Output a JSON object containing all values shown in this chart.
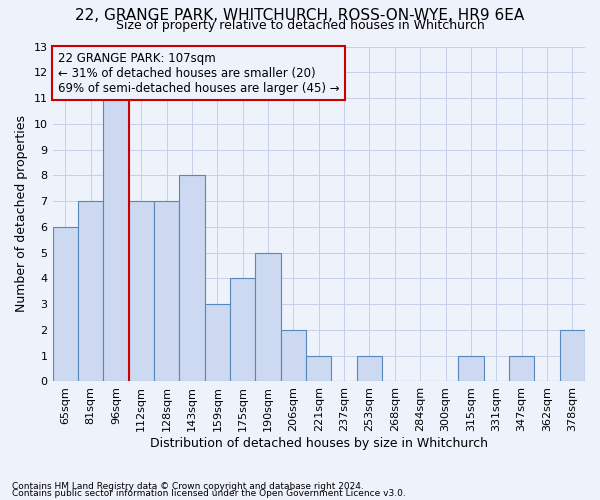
{
  "title1": "22, GRANGE PARK, WHITCHURCH, ROSS-ON-WYE, HR9 6EA",
  "title2": "Size of property relative to detached houses in Whitchurch",
  "xlabel": "Distribution of detached houses by size in Whitchurch",
  "ylabel": "Number of detached properties",
  "footer1": "Contains HM Land Registry data © Crown copyright and database right 2024.",
  "footer2": "Contains public sector information licensed under the Open Government Licence v3.0.",
  "annotation_line1": "22 GRANGE PARK: 107sqm",
  "annotation_line2": "← 31% of detached houses are smaller (20)",
  "annotation_line3": "69% of semi-detached houses are larger (45) →",
  "bar_labels": [
    "65sqm",
    "81sqm",
    "96sqm",
    "112sqm",
    "128sqm",
    "143sqm",
    "159sqm",
    "175sqm",
    "190sqm",
    "206sqm",
    "221sqm",
    "237sqm",
    "253sqm",
    "268sqm",
    "284sqm",
    "300sqm",
    "315sqm",
    "331sqm",
    "347sqm",
    "362sqm",
    "378sqm"
  ],
  "bar_values": [
    6,
    7,
    11,
    7,
    7,
    8,
    3,
    4,
    5,
    2,
    1,
    0,
    1,
    0,
    0,
    0,
    1,
    0,
    1,
    0,
    2
  ],
  "bar_color": "#ccd9f0",
  "bar_edge_color": "#5588bb",
  "grid_color": "#c5cfe8",
  "ref_line_x": 2.5,
  "ref_line_color": "#cc0000",
  "ylim": [
    0,
    13
  ],
  "yticks": [
    0,
    1,
    2,
    3,
    4,
    5,
    6,
    7,
    8,
    9,
    10,
    11,
    12,
    13
  ],
  "bg_color": "#eef2fb",
  "title1_fontsize": 11,
  "title2_fontsize": 9,
  "ylabel_fontsize": 9,
  "xlabel_fontsize": 9,
  "tick_fontsize": 8,
  "footer_fontsize": 6.5
}
